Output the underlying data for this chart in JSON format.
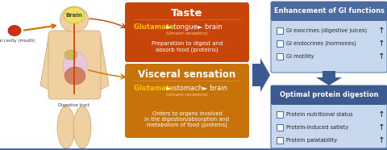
{
  "taste_title": "Taste",
  "taste_glut_yellow": "Glutamate ",
  "taste_glut_white": "► tongue► brain",
  "taste_umami": "(Umami receptors)",
  "taste_body": "Preparation to digest and\nabsorb food (proteins)",
  "visceral_title": "Visceral sensation",
  "visceral_glut_yellow": "Glutamate ",
  "visceral_glut_white": "► stomach► brain",
  "visceral_umami": "(Umami receptors)",
  "visceral_body": "Orders to organs involved\nin the digestion/absorption and\nmetabolism of food (proteins)",
  "gi_title": "Enhancement of GI functions",
  "gi_items": [
    "GI exocrines (digestive juices)",
    "GI endocrines (hormones)",
    "GI motility"
  ],
  "protein_title": "Optimal protein digestion",
  "protein_items": [
    "Protein nutritional status",
    "Protein-induced satiety",
    "Protein palatability"
  ],
  "taste_box_color": "#c8450a",
  "visceral_box_color": "#c8730a",
  "gi_header_color": "#4a6ca0",
  "gi_body_color": "#c8d8ee",
  "protein_header_color": "#3a5a90",
  "protein_body_color": "#c8d8ee",
  "blue_arrow_color": "#3a5a90",
  "glutamate_color": "#f5c400",
  "red_arrow_color": "#c84000",
  "orange_arrow_color": "#c87000",
  "body_skin": "#f0d0a0",
  "body_edge": "#c8a070",
  "brain_fill": "#f0e060",
  "brain_edge": "#c8b840",
  "oral_fill": "#cc3010",
  "gi_border_color": "#6080b0",
  "protein_border_color": "#5070a0",
  "label_color": "#333333",
  "white": "#ffffff"
}
